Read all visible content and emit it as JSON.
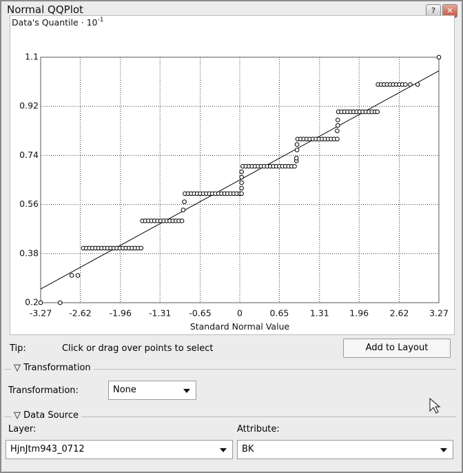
{
  "window": {
    "title": "Normal QQPlot"
  },
  "chart_data": {
    "type": "scatter",
    "y_label": "Data's Quantile · 10",
    "y_label_exponent": "-1",
    "x_label": "Standard Normal Value",
    "xlim": [
      -3.27,
      3.27
    ],
    "xticks": [
      -3.27,
      -2.62,
      -1.96,
      -1.31,
      -0.65,
      0,
      0.65,
      1.31,
      1.96,
      2.62,
      3.27
    ],
    "ylim": [
      0.2,
      1.1
    ],
    "yticks": [
      0.2,
      0.38,
      0.56,
      0.74,
      0.92,
      1.1
    ],
    "grid": true,
    "color": "#000000",
    "x": [
      -3.27,
      -2.95,
      -2.76,
      -2.66,
      -2.57,
      -2.52,
      -2.47,
      -2.42,
      -2.37,
      -2.32,
      -2.27,
      -2.22,
      -2.17,
      -2.12,
      -2.07,
      -2.02,
      -1.97,
      -1.92,
      -1.87,
      -1.82,
      -1.77,
      -1.72,
      -1.67,
      -1.62,
      -1.6,
      -1.55,
      -1.5,
      -1.45,
      -1.4,
      -1.35,
      -1.3,
      -1.25,
      -1.2,
      -1.15,
      -1.1,
      -1.05,
      -1.0,
      -0.95,
      -0.93,
      -0.91,
      -0.9,
      -0.85,
      -0.8,
      -0.75,
      -0.7,
      -0.65,
      -0.6,
      -0.55,
      -0.5,
      -0.45,
      -0.4,
      -0.35,
      -0.3,
      -0.25,
      -0.2,
      -0.15,
      -0.1,
      -0.05,
      0,
      0.03,
      0.03,
      0.03,
      0.03,
      0.03,
      0.05,
      0.1,
      0.15,
      0.2,
      0.25,
      0.3,
      0.35,
      0.4,
      0.45,
      0.5,
      0.55,
      0.6,
      0.65,
      0.7,
      0.75,
      0.8,
      0.85,
      0.9,
      0.93,
      0.93,
      0.94,
      0.94,
      0.95,
      1.0,
      1.05,
      1.1,
      1.15,
      1.2,
      1.25,
      1.3,
      1.35,
      1.4,
      1.45,
      1.5,
      1.55,
      1.6,
      1.6,
      1.61,
      1.61,
      1.62,
      1.67,
      1.72,
      1.77,
      1.82,
      1.87,
      1.92,
      1.97,
      2.02,
      2.07,
      2.12,
      2.17,
      2.22,
      2.26,
      2.27,
      2.32,
      2.37,
      2.42,
      2.47,
      2.52,
      2.57,
      2.62,
      2.67,
      2.72,
      2.8,
      2.92,
      3.27
    ],
    "values": [
      0.2,
      0.2,
      0.3,
      0.3,
      0.4,
      0.4,
      0.4,
      0.4,
      0.4,
      0.4,
      0.4,
      0.4,
      0.4,
      0.4,
      0.4,
      0.4,
      0.4,
      0.4,
      0.4,
      0.4,
      0.4,
      0.4,
      0.4,
      0.4,
      0.5,
      0.5,
      0.5,
      0.5,
      0.5,
      0.5,
      0.5,
      0.5,
      0.5,
      0.5,
      0.5,
      0.5,
      0.5,
      0.5,
      0.54,
      0.57,
      0.6,
      0.6,
      0.6,
      0.6,
      0.6,
      0.6,
      0.6,
      0.6,
      0.6,
      0.6,
      0.6,
      0.6,
      0.6,
      0.6,
      0.6,
      0.6,
      0.6,
      0.6,
      0.6,
      0.6,
      0.62,
      0.64,
      0.66,
      0.68,
      0.7,
      0.7,
      0.7,
      0.7,
      0.7,
      0.7,
      0.7,
      0.7,
      0.7,
      0.7,
      0.7,
      0.7,
      0.7,
      0.7,
      0.7,
      0.7,
      0.7,
      0.7,
      0.72,
      0.73,
      0.76,
      0.78,
      0.8,
      0.8,
      0.8,
      0.8,
      0.8,
      0.8,
      0.8,
      0.8,
      0.8,
      0.8,
      0.8,
      0.8,
      0.8,
      0.8,
      0.83,
      0.85,
      0.87,
      0.9,
      0.9,
      0.9,
      0.9,
      0.9,
      0.9,
      0.9,
      0.9,
      0.9,
      0.9,
      0.9,
      0.9,
      0.9,
      0.9,
      1.0,
      1.0,
      1.0,
      1.0,
      1.0,
      1.0,
      1.0,
      1.0,
      1.0,
      1.0,
      1.0,
      1.0,
      1.1
    ],
    "reference_line": {
      "x": [
        -3.27,
        3.27
      ],
      "values": [
        0.25,
        1.05
      ],
      "color": "#000000"
    }
  },
  "tip": {
    "label": "Tip:",
    "text": "Click or drag over points to select"
  },
  "buttons": {
    "add_to_layout": "Add to Layout"
  },
  "transformation": {
    "section": "Transformation",
    "label": "Transformation:",
    "value": "None"
  },
  "data_source": {
    "section": "Data Source",
    "layer_label": "Layer:",
    "layer_value": "HjnJtm943_0712",
    "attribute_label": "Attribute:",
    "attribute_value": "BK"
  }
}
